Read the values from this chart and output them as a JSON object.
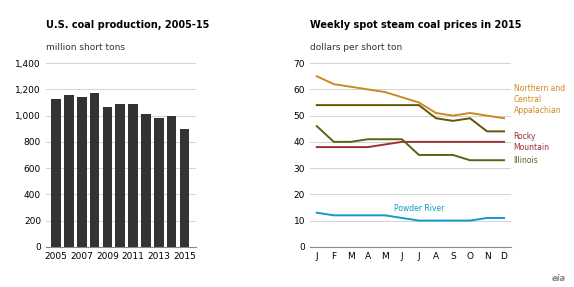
{
  "bar_years": [
    2005,
    2006,
    2007,
    2008,
    2009,
    2010,
    2011,
    2012,
    2013,
    2014,
    2015
  ],
  "bar_values": [
    1130,
    1160,
    1145,
    1170,
    1065,
    1085,
    1090,
    1015,
    985,
    1000,
    900
  ],
  "bar_color": "#333333",
  "bar_title": "U.S. coal production, 2005-15",
  "bar_ylabel": "million short tons",
  "bar_ylim": [
    0,
    1400
  ],
  "bar_yticks": [
    0,
    200,
    400,
    600,
    800,
    1000,
    1200,
    1400
  ],
  "bar_xticks": [
    2005,
    2007,
    2009,
    2011,
    2013,
    2015
  ],
  "line_title": "Weekly spot steam coal prices in 2015",
  "line_ylabel": "dollars per short ton",
  "line_ylim": [
    0,
    70
  ],
  "line_yticks": [
    0,
    10,
    20,
    30,
    40,
    50,
    60,
    70
  ],
  "line_xticks": [
    "J",
    "F",
    "M",
    "A",
    "M",
    "J",
    "J",
    "A",
    "S",
    "O",
    "N",
    "D"
  ],
  "northern_appalachian": [
    65,
    62,
    61,
    60,
    59,
    57,
    55,
    51,
    50,
    51,
    50,
    49
  ],
  "northern_color": "#CC8822",
  "central_appalachian": [
    54,
    54,
    54,
    54,
    54,
    54,
    54,
    49,
    48,
    49,
    44,
    44
  ],
  "central_color": "#665500",
  "rocky_mountain": [
    38,
    38,
    38,
    38,
    39,
    40,
    40,
    40,
    40,
    40,
    40,
    40
  ],
  "rocky_color": "#993333",
  "illinois": [
    46,
    40,
    40,
    41,
    41,
    41,
    35,
    35,
    35,
    33,
    33,
    33
  ],
  "illinois_color": "#556611",
  "powder_river": [
    13,
    12,
    12,
    12,
    12,
    11,
    10,
    10,
    10,
    10,
    11,
    11
  ],
  "powder_color": "#1199CC",
  "bg_color": "#ffffff",
  "grid_color": "#cccccc"
}
